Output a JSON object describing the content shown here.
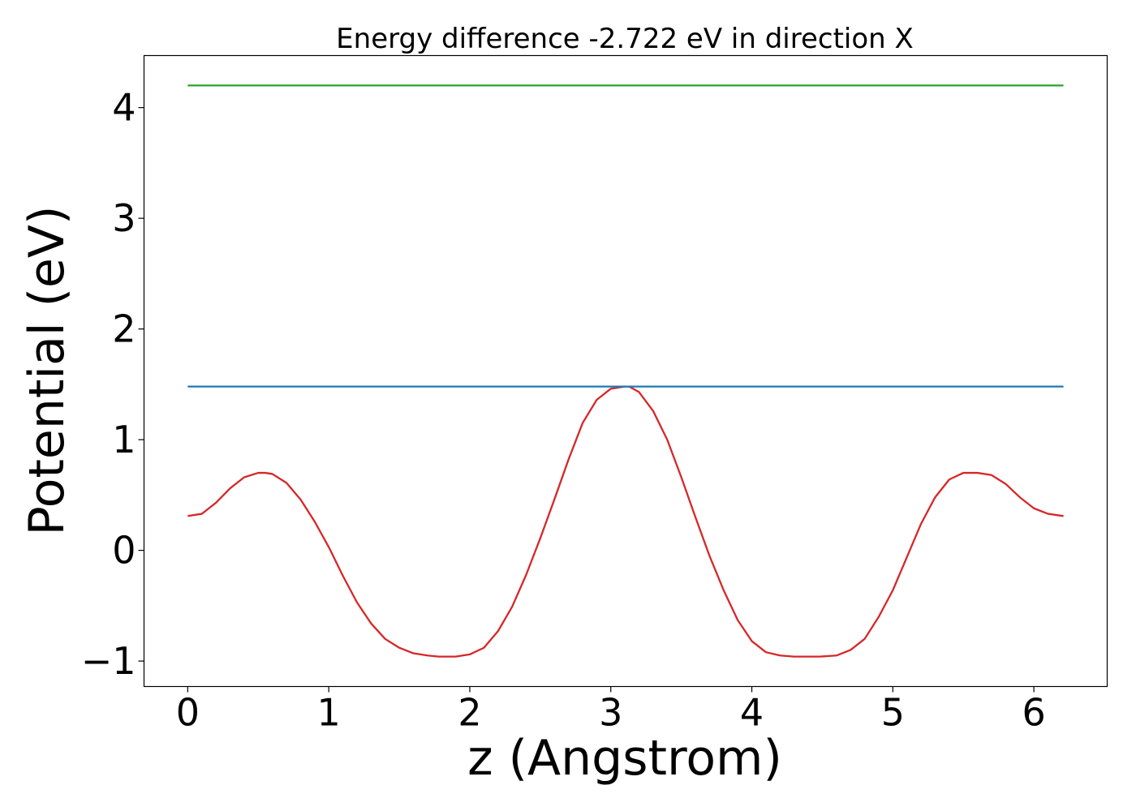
{
  "chart_data": {
    "type": "line",
    "title": "Energy difference -2.722 eV in direction X",
    "xlabel": "z (Angstrom)",
    "ylabel": "Potential (eV)",
    "xlim": [
      -0.31,
      6.52
    ],
    "ylim": [
      -1.23,
      4.47
    ],
    "xticks": [
      0,
      1,
      2,
      3,
      4,
      5,
      6
    ],
    "xtick_labels": [
      "0",
      "1",
      "2",
      "3",
      "4",
      "5",
      "6"
    ],
    "yticks": [
      -1,
      0,
      1,
      2,
      3,
      4
    ],
    "ytick_labels": [
      "−1",
      "0",
      "1",
      "2",
      "3",
      "4"
    ],
    "grid": false,
    "legend": false,
    "series": [
      {
        "color": "#d62728",
        "x": [
          0,
          0.1,
          0.2,
          0.3,
          0.4,
          0.5,
          0.55,
          0.6,
          0.7,
          0.8,
          0.9,
          1.0,
          1.1,
          1.2,
          1.3,
          1.4,
          1.5,
          1.6,
          1.7,
          1.78,
          1.85,
          1.9,
          2.0,
          2.1,
          2.2,
          2.3,
          2.4,
          2.5,
          2.6,
          2.7,
          2.8,
          2.9,
          3.0,
          3.1,
          3.13,
          3.2,
          3.3,
          3.4,
          3.5,
          3.6,
          3.7,
          3.8,
          3.9,
          4.0,
          4.1,
          4.2,
          4.3,
          4.4,
          4.48,
          4.6,
          4.7,
          4.8,
          4.9,
          5.0,
          5.1,
          5.2,
          5.3,
          5.4,
          5.5,
          5.6,
          5.7,
          5.8,
          5.9,
          6.0,
          6.1,
          6.21
        ],
        "y": [
          0.31,
          0.33,
          0.43,
          0.56,
          0.66,
          0.7,
          0.7,
          0.69,
          0.61,
          0.46,
          0.26,
          0.03,
          -0.23,
          -0.47,
          -0.66,
          -0.8,
          -0.88,
          -0.93,
          -0.95,
          -0.96,
          -0.96,
          -0.96,
          -0.94,
          -0.88,
          -0.73,
          -0.51,
          -0.22,
          0.11,
          0.46,
          0.82,
          1.15,
          1.36,
          1.46,
          1.48,
          1.48,
          1.43,
          1.26,
          1.0,
          0.66,
          0.3,
          -0.05,
          -0.36,
          -0.63,
          -0.82,
          -0.92,
          -0.95,
          -0.96,
          -0.96,
          -0.96,
          -0.95,
          -0.9,
          -0.8,
          -0.6,
          -0.36,
          -0.06,
          0.24,
          0.48,
          0.64,
          0.7,
          0.7,
          0.68,
          0.6,
          0.48,
          0.38,
          0.33,
          0.31
        ]
      },
      {
        "color": "#1f77b4",
        "x": [
          0,
          6.21
        ],
        "y": [
          1.48,
          1.48
        ]
      },
      {
        "color": "#2ca02c",
        "x": [
          0,
          6.21
        ],
        "y": [
          4.2,
          4.2
        ]
      }
    ]
  }
}
